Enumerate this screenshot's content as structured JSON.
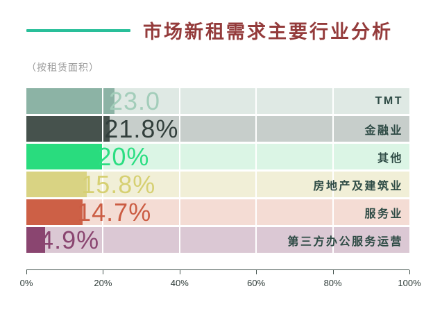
{
  "header": {
    "title": "市场新租需求主要行业分析",
    "subtitle": "（按租赁面积）",
    "accent_color": "#29bf9a",
    "title_color": "#943b3b"
  },
  "chart_data": {
    "type": "bar",
    "orientation": "horizontal",
    "title": "市场新租需求主要行业分析",
    "subtitle": "（按租赁面积）",
    "unit": "%",
    "categories": [
      "TMT",
      "金融业",
      "其他",
      "房地产及建筑业",
      "服务业",
      "第三方办公服务运营"
    ],
    "values": [
      23.0,
      21.8,
      20,
      15.8,
      14.7,
      4.9
    ],
    "value_labels": [
      "23.0",
      "21.8%",
      "20%",
      "15.8%",
      "14.7%",
      "4.9%"
    ],
    "bar_colors": [
      "#8cb3a5",
      "#46524d",
      "#29dc7e",
      "#d9d383",
      "#cd6046",
      "#8a4570"
    ],
    "track_colors": [
      "#dfe9e4",
      "#c7cecb",
      "#dbf5e5",
      "#f1efd7",
      "#f4dcd4",
      "#dbc8d4"
    ],
    "value_label_colors": [
      "#a3cdba",
      "#323f3c",
      "#2bde82",
      "#d6d072",
      "#cb5c43",
      "#8a4570"
    ],
    "category_label_color": "#2e4b45",
    "xlim": [
      0,
      100
    ],
    "tick_positions": [
      0,
      20,
      40,
      60,
      80,
      100
    ],
    "tick_labels": [
      "0%",
      "20%",
      "40%",
      "60%",
      "80%",
      "100%"
    ],
    "gridline_positions": [
      20,
      40,
      60,
      80
    ],
    "grid": true,
    "legend": false
  }
}
